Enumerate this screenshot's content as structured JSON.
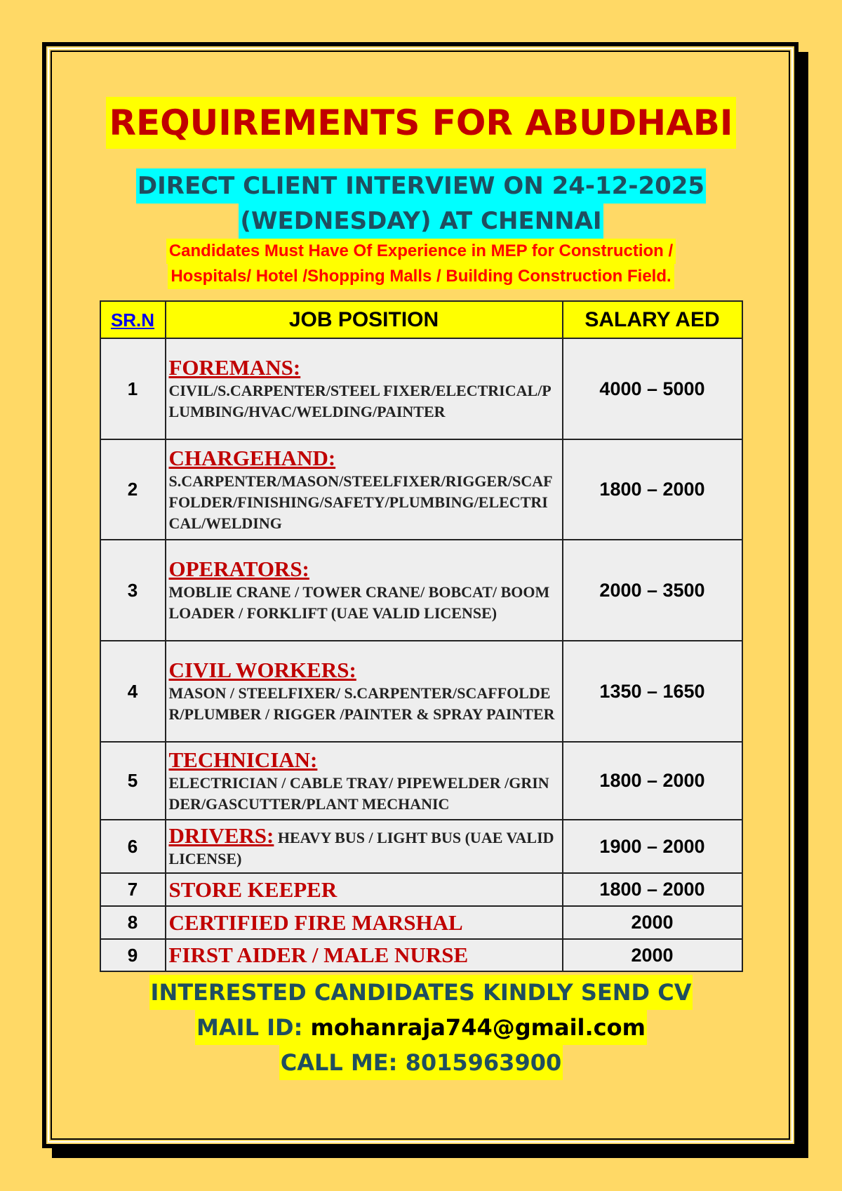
{
  "title": "REQUIREMENTS FOR ABUDHABI",
  "interview": {
    "line1": "DIRECT CLIENT INTERVIEW ON 24-12-2025",
    "line2": "(WEDNESDAY) AT CHENNAI"
  },
  "requirement": {
    "line1": "Candidates Must Have Of Experience in MEP for Construction /",
    "line2": "Hospitals/ Hotel /Shopping Malls / Building Construction Field."
  },
  "table": {
    "headers": [
      "SR.N",
      "JOB POSITION",
      "SALARY AED"
    ],
    "rows": [
      {
        "sr": "1",
        "category": "FOREMANS:",
        "details": "CIVIL/S.CARPENTER/STEEL FIXER/ELECTRICAL/PLUMBING/HVAC/WELDING/PAINTER",
        "salary": "4000 – 5000"
      },
      {
        "sr": "2",
        "category": "CHARGEHAND:",
        "details": "S.CARPENTER/MASON/STEELFIXER/RIGGER/SCAFFOLDER/FINISHING/SAFETY/PLUMBING/ELECTRICAL/WELDING",
        "salary": "1800 – 2000"
      },
      {
        "sr": "3",
        "category": "OPERATORS:",
        "details": "MOBLIE CRANE / TOWER CRANE/ BOBCAT/ BOOM LOADER / FORKLIFT (UAE VALID LICENSE)",
        "salary": "2000 – 3500"
      },
      {
        "sr": "4",
        "category": "CIVIL WORKERS:",
        "details": "MASON / STEELFIXER/ S.CARPENTER/SCAFFOLDER/PLUMBER / RIGGER /PAINTER & SPRAY PAINTER",
        "salary": "1350 – 1650"
      },
      {
        "sr": "5",
        "category": "TECHNICIAN:",
        "details": "ELECTRICIAN / CABLE TRAY/ PIPEWELDER /GRINDER/GASCUTTER/PLANT MECHANIC",
        "salary": "1800 – 2000"
      },
      {
        "sr": "6",
        "category": "DRIVERS:",
        "details": "HEAVY BUS / LIGHT BUS (UAE VALID LICENSE)",
        "salary": "1900 – 2000"
      },
      {
        "sr": "7",
        "category": "STORE KEEPER",
        "details": "",
        "salary": "1800 – 2000"
      },
      {
        "sr": "8",
        "category": "CERTIFIED FIRE MARSHAL",
        "details": "",
        "salary": "2000"
      },
      {
        "sr": "9",
        "category": "FIRST AIDER / MALE NURSE",
        "details": "",
        "salary": "2000"
      }
    ]
  },
  "footer": {
    "cta": "INTERESTED CANDIDATES KINDLY SEND CV",
    "mail_label": "MAIL ID:",
    "mail": "mohanraja744@gmail.com",
    "call_label": "CALL ME:",
    "phone": "8015963900"
  },
  "colors": {
    "background": "#ffd966",
    "highlight": "#ffff00",
    "cyan": "#00ffff",
    "title_red": "#c00000",
    "teal_text": "#1f4e5f"
  }
}
